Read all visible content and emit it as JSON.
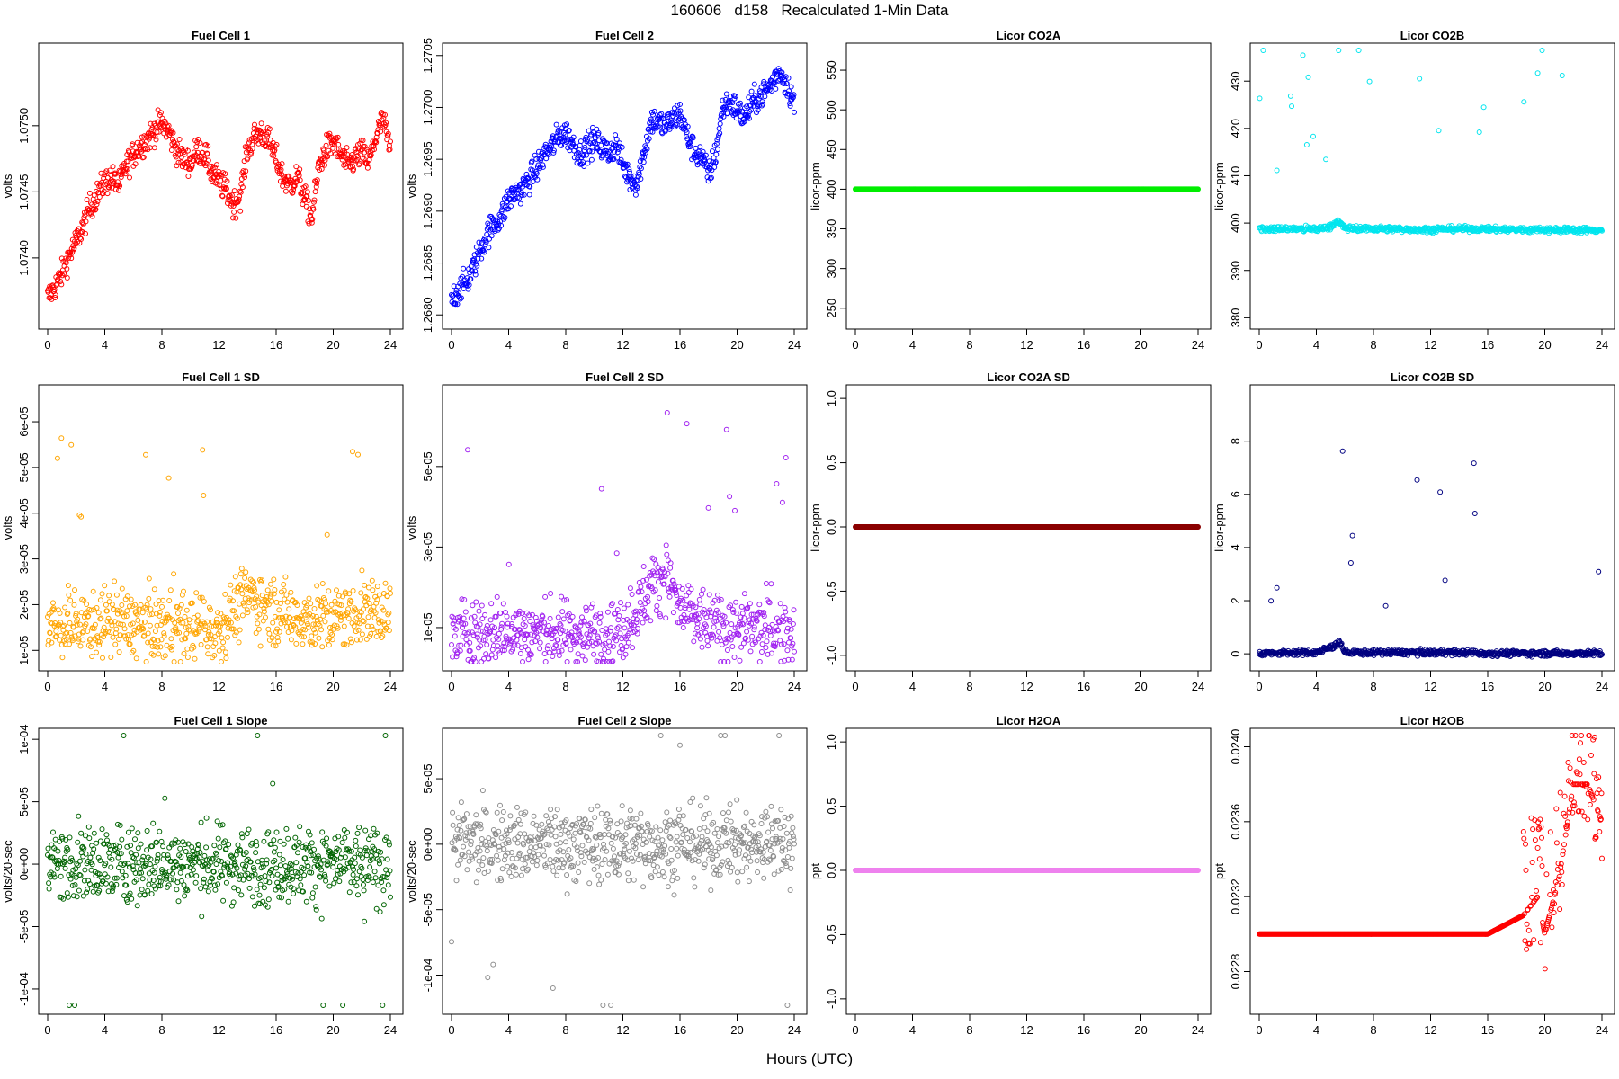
{
  "page": {
    "title": "160606   d158   Recalculated 1-Min Data",
    "xlabel": "Hours (UTC)"
  },
  "chart_data": [
    {
      "id": "fc1",
      "type": "scatter",
      "title": "Fuel Cell 1",
      "ylabel": "volts",
      "color": "#ff0000",
      "xlim": [
        0,
        24
      ],
      "ylim": [
        1.07353,
        1.07557
      ],
      "xticks": [
        "0",
        "4",
        "8",
        "12",
        "16",
        "20",
        "24"
      ],
      "yticks": [
        {
          "v": 1.074,
          "label": "1.0740"
        },
        {
          "v": 1.0745,
          "label": "1.0745"
        },
        {
          "v": 1.075,
          "label": "1.0750"
        }
      ],
      "series": [
        {
          "x": [
            0,
            0.5,
            1,
            1.5,
            2,
            2.5,
            3,
            3.5,
            4,
            4.5,
            5,
            5.5,
            6,
            6.5,
            7,
            7.5,
            8,
            8.5,
            9,
            9.5,
            10,
            10.5,
            11,
            11.5,
            12,
            12.5,
            13,
            13.5,
            14,
            14.5,
            15,
            15.5,
            16,
            16.5,
            17,
            17.5,
            18,
            18.5,
            19,
            19.5,
            20,
            20.5,
            21,
            21.5,
            22,
            22.5,
            23,
            23.5,
            24
          ],
          "y": [
            1.0737,
            1.07378,
            1.07388,
            1.07402,
            1.07412,
            1.07425,
            1.0744,
            1.07448,
            1.07458,
            1.0746,
            1.07455,
            1.0747,
            1.07478,
            1.07485,
            1.0749,
            1.07497,
            1.07502,
            1.07495,
            1.07482,
            1.07475,
            1.07472,
            1.07482,
            1.07478,
            1.07465,
            1.07458,
            1.07452,
            1.0744,
            1.07448,
            1.07482,
            1.07492,
            1.07495,
            1.07488,
            1.07475,
            1.0746,
            1.07455,
            1.07462,
            1.07445,
            1.0743,
            1.0747,
            1.07482,
            1.07488,
            1.07478,
            1.0747,
            1.07475,
            1.0748,
            1.07472,
            1.07492,
            1.07505,
            1.0748
          ]
        }
      ]
    },
    {
      "id": "fc2",
      "type": "scatter",
      "title": "Fuel Cell 2",
      "ylabel": "volts",
      "color": "#0000ff",
      "xlim": [
        0,
        24
      ],
      "ylim": [
        1.26795,
        1.27055
      ],
      "xticks": [
        "0",
        "4",
        "8",
        "12",
        "16",
        "20",
        "24"
      ],
      "yticks": [
        {
          "v": 1.268,
          "label": "1.2680"
        },
        {
          "v": 1.2685,
          "label": "1.2685"
        },
        {
          "v": 1.269,
          "label": "1.2690"
        },
        {
          "v": 1.2695,
          "label": "1.2695"
        },
        {
          "v": 1.27,
          "label": "1.2700"
        },
        {
          "v": 1.2705,
          "label": "1.2705"
        }
      ],
      "series": [
        {
          "x": [
            0,
            0.5,
            1,
            1.5,
            2,
            2.5,
            3,
            3.5,
            4,
            4.5,
            5,
            5.5,
            6,
            6.5,
            7,
            7.5,
            8,
            8.5,
            9,
            9.5,
            10,
            10.5,
            11,
            11.5,
            12,
            12.5,
            13,
            13.5,
            14,
            14.5,
            15,
            15.5,
            16,
            16.5,
            17,
            17.5,
            18,
            18.5,
            19,
            19.5,
            20,
            20.5,
            21,
            21.5,
            22,
            22.5,
            23,
            23.5,
            24
          ],
          "y": [
            1.26815,
            1.26825,
            1.2683,
            1.26845,
            1.26862,
            1.26878,
            1.26888,
            1.26895,
            1.26912,
            1.26918,
            1.26922,
            1.26932,
            1.26942,
            1.26955,
            1.26962,
            1.26972,
            1.26975,
            1.26965,
            1.26955,
            1.26962,
            1.26968,
            1.26962,
            1.26955,
            1.26965,
            1.26945,
            1.26932,
            1.26928,
            1.26958,
            1.26988,
            1.26985,
            1.26982,
            1.26988,
            1.26995,
            1.26972,
            1.26958,
            1.26952,
            1.26935,
            1.26955,
            1.27,
            1.27005,
            1.26998,
            1.2699,
            1.27002,
            1.2701,
            1.27015,
            1.27025,
            1.27035,
            1.27022,
            1.27005
          ]
        }
      ]
    },
    {
      "id": "co2a",
      "type": "scatter",
      "title": "Licor CO2A",
      "ylabel": "licor-ppm",
      "color": "#00ee00",
      "xlim": [
        0,
        24
      ],
      "ylim": [
        235,
        575
      ],
      "xticks": [
        "0",
        "4",
        "8",
        "12",
        "16",
        "20",
        "24"
      ],
      "yticks": [
        {
          "v": 250,
          "label": "250"
        },
        {
          "v": 300,
          "label": "300"
        },
        {
          "v": 350,
          "label": "350"
        },
        {
          "v": 400,
          "label": "400"
        },
        {
          "v": 450,
          "label": "450"
        },
        {
          "v": 500,
          "label": "500"
        },
        {
          "v": 550,
          "label": "550"
        }
      ],
      "series": [
        {
          "x": [
            0,
            24
          ],
          "y": [
            400,
            400
          ]
        }
      ]
    },
    {
      "id": "co2b",
      "type": "scatter",
      "title": "Licor CO2B",
      "ylabel": "licor-ppm",
      "color": "#00e5ee",
      "xlim": [
        0,
        24
      ],
      "ylim": [
        379.5,
        436.5
      ],
      "xticks": [
        "0",
        "4",
        "8",
        "12",
        "16",
        "20",
        "24"
      ],
      "yticks": [
        {
          "v": 380,
          "label": "380"
        },
        {
          "v": 390,
          "label": "390"
        },
        {
          "v": 400,
          "label": "400"
        },
        {
          "v": 410,
          "label": "410"
        },
        {
          "v": 420,
          "label": "420"
        },
        {
          "v": 430,
          "label": "430"
        }
      ],
      "series": [
        {
          "x": [
            0,
            4,
            5,
            5.5,
            6,
            8,
            10,
            12,
            14,
            16,
            20,
            24
          ],
          "y": [
            398.8,
            398.7,
            399.2,
            400.5,
            398.9,
            398.8,
            398.7,
            398.6,
            398.8,
            398.7,
            398.6,
            398.5
          ]
        }
      ]
    },
    {
      "id": "fc1sd",
      "type": "scatter",
      "title": "Fuel Cell 1 SD",
      "ylabel": "volts",
      "color": "#ffa500",
      "xlim": [
        0,
        24
      ],
      "ylim": [
        7.5e-06,
        6.65e-05
      ],
      "xticks": [
        "0",
        "4",
        "8",
        "12",
        "16",
        "20",
        "24"
      ],
      "yticks": [
        {
          "v": 1e-05,
          "label": "1e-05"
        },
        {
          "v": 2e-05,
          "label": "2e-05"
        },
        {
          "v": 3e-05,
          "label": "3e-05"
        },
        {
          "v": 4e-05,
          "label": "4e-05"
        },
        {
          "v": 5e-05,
          "label": "5e-05"
        },
        {
          "v": 6e-05,
          "label": "6e-05"
        }
      ],
      "series": [
        {
          "x": [
            0,
            2,
            4,
            6,
            8,
            10,
            12,
            14,
            16,
            18,
            20,
            22,
            24
          ],
          "y": [
            1.5e-05,
            1.55e-05,
            1.6e-05,
            1.58e-05,
            1.52e-05,
            1.5e-05,
            1.5e-05,
            2.2e-05,
            1.85e-05,
            1.7e-05,
            1.7e-05,
            1.85e-05,
            1.8e-05
          ]
        }
      ]
    },
    {
      "id": "fc2sd",
      "type": "scatter",
      "title": "Fuel Cell 2 SD",
      "ylabel": "volts",
      "color": "#a020f0",
      "xlim": [
        0,
        24
      ],
      "ylim": [
        1.5e-06,
        6.85e-05
      ],
      "xticks": [
        "0",
        "4",
        "8",
        "12",
        "16",
        "20",
        "24"
      ],
      "yticks": [
        {
          "v": 1e-05,
          "label": "1e-05"
        },
        {
          "v": 3e-05,
          "label": "3e-05"
        },
        {
          "v": 5e-05,
          "label": "5e-05"
        }
      ],
      "series": [
        {
          "x": [
            0,
            2,
            4,
            6,
            8,
            10,
            12,
            14,
            15,
            16,
            18,
            20,
            22,
            24
          ],
          "y": [
            8.5e-06,
            8.8e-06,
            9e-06,
            8.8e-06,
            8.5e-06,
            8.5e-06,
            9.5e-06,
            2e-05,
            2.4e-05,
            1.4e-05,
            1.1e-05,
            9.5e-06,
            9.5e-06,
            9e-06
          ]
        }
      ]
    },
    {
      "id": "co2asd",
      "type": "scatter",
      "title": "Licor CO2A SD",
      "ylabel": "licor-ppm",
      "color": "#8b0000",
      "xlim": [
        0,
        24
      ],
      "ylim": [
        -1.05,
        1.05
      ],
      "xticks": [
        "0",
        "4",
        "8",
        "12",
        "16",
        "20",
        "24"
      ],
      "yticks": [
        {
          "v": -1,
          "label": "-1.0"
        },
        {
          "v": -0.5,
          "label": "-0.5"
        },
        {
          "v": 0,
          "label": "0.0"
        },
        {
          "v": 0.5,
          "label": "0.5"
        },
        {
          "v": 1,
          "label": "1.0"
        }
      ],
      "series": [
        {
          "x": [
            0,
            24
          ],
          "y": [
            0,
            0
          ]
        }
      ]
    },
    {
      "id": "co2bsd",
      "type": "scatter",
      "title": "Licor CO2B SD",
      "ylabel": "licor-ppm",
      "color": "#000080",
      "xlim": [
        0,
        24
      ],
      "ylim": [
        -0.3,
        9.85
      ],
      "xticks": [
        "0",
        "4",
        "8",
        "12",
        "16",
        "20",
        "24"
      ],
      "yticks": [
        {
          "v": 0,
          "label": "0"
        },
        {
          "v": 2,
          "label": "2"
        },
        {
          "v": 4,
          "label": "4"
        },
        {
          "v": 6,
          "label": "6"
        },
        {
          "v": 8,
          "label": "8"
        }
      ],
      "series": [
        {
          "x": [
            0,
            4,
            5.3,
            5.6,
            6,
            8,
            14,
            16,
            20,
            24
          ],
          "y": [
            0.02,
            0.05,
            0.3,
            0.5,
            0.05,
            0.05,
            0.05,
            0.02,
            0.02,
            0.02
          ]
        }
      ]
    },
    {
      "id": "fc1slope",
      "type": "scatter",
      "title": "Fuel Cell 1 Slope",
      "ylabel": "volts/20-sec",
      "color": "#006400",
      "xlim": [
        0,
        24
      ],
      "ylim": [
        -0.000113,
        0.000103
      ],
      "xticks": [
        "0",
        "4",
        "8",
        "12",
        "16",
        "20",
        "24"
      ],
      "yticks": [
        {
          "v": -0.0001,
          "label": "-1e-04"
        },
        {
          "v": -5e-05,
          "label": "-5e-05"
        },
        {
          "v": 0,
          "label": "0e+00"
        },
        {
          "v": 5e-05,
          "label": "5e-05"
        },
        {
          "v": 0.0001,
          "label": "1e-04"
        }
      ],
      "series": [
        {
          "x": [
            0,
            24
          ],
          "y": [
            0,
            0
          ]
        }
      ]
    },
    {
      "id": "fc2slope",
      "type": "scatter",
      "title": "Fuel Cell 2 Slope",
      "ylabel": "volts/20-sec",
      "color": "#8c8c8c",
      "xlim": [
        0,
        24
      ],
      "ylim": [
        -0.000123,
        8.3e-05
      ],
      "xticks": [
        "0",
        "4",
        "8",
        "12",
        "16",
        "20",
        "24"
      ],
      "yticks": [
        {
          "v": -0.0001,
          "label": "-1e-04"
        },
        {
          "v": -5e-05,
          "label": "-5e-05"
        },
        {
          "v": 0,
          "label": "0e+00"
        },
        {
          "v": 5e-05,
          "label": "5e-05"
        }
      ],
      "series": [
        {
          "x": [
            0,
            24
          ],
          "y": [
            0,
            0
          ]
        }
      ]
    },
    {
      "id": "h2oa",
      "type": "scatter",
      "title": "Licor H2OA",
      "ylabel": "ppt",
      "color": "#ee82ee",
      "xlim": [
        0,
        24
      ],
      "ylim": [
        -1.05,
        1.05
      ],
      "xticks": [
        "0",
        "4",
        "8",
        "12",
        "16",
        "20",
        "24"
      ],
      "yticks": [
        {
          "v": -1,
          "label": "-1.0"
        },
        {
          "v": -0.5,
          "label": "-0.5"
        },
        {
          "v": 0,
          "label": "0.0"
        },
        {
          "v": 0.5,
          "label": "0.5"
        },
        {
          "v": 1,
          "label": "1.0"
        }
      ],
      "series": [
        {
          "x": [
            0,
            24
          ],
          "y": [
            0,
            0
          ]
        }
      ]
    },
    {
      "id": "h2ob",
      "type": "scatter",
      "title": "Licor H2OB",
      "ylabel": "ppt",
      "color": "#ff0000",
      "xlim": [
        0,
        24
      ],
      "ylim": [
        0.02262,
        0.02406
      ],
      "xticks": [
        "0",
        "4",
        "8",
        "12",
        "16",
        "20",
        "24"
      ],
      "yticks": [
        {
          "v": 0.0228,
          "label": "0.0228"
        },
        {
          "v": 0.0232,
          "label": "0.0232"
        },
        {
          "v": 0.0236,
          "label": "0.0236"
        },
        {
          "v": 0.024,
          "label": "0.0240"
        }
      ],
      "series": [
        {
          "x": [
            0,
            4,
            8,
            12,
            16,
            18.5,
            19.5,
            20,
            21,
            22,
            23,
            24
          ],
          "y": [
            0.023,
            0.023,
            0.023,
            0.023,
            0.023,
            0.0231,
            0.0232,
            0.023,
            0.0233,
            0.0238,
            0.0238,
            0.0236
          ]
        }
      ]
    }
  ]
}
